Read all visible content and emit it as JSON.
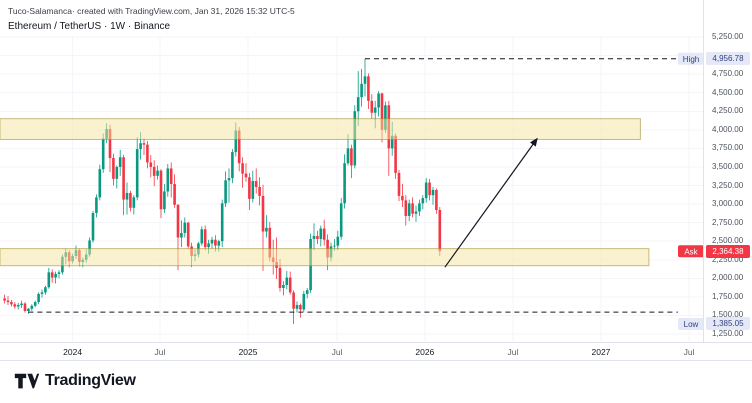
{
  "header": {
    "attribution": "Tuco-Salamanca· created with TradingView.com, Jan 31, 2026 15:32 UTC-5",
    "symbol_line": "Ethereum / TetherUS · 1W · Binance"
  },
  "footer": {
    "logo_text": "TradingView"
  },
  "colors": {
    "up": "#089981",
    "down": "#F23645",
    "zone_fill": "#F5E6A0",
    "zone_border": "#9a8526",
    "drawing": "#131722",
    "tag_bg": "#e4e8f7",
    "tag_text": "#343f7d",
    "ask": "#F23645",
    "grid": "#f4f5f8",
    "axis_text": "#4c525e"
  },
  "chart_data": {
    "type": "candlestick",
    "symbol": "Ethereum / TetherUS",
    "interval": "1W",
    "exchange": "Binance",
    "y_axis": {
      "min": 1250,
      "max": 5250,
      "tick_step": 250
    },
    "x_axis": {
      "labels": [
        {
          "text": "2024",
          "week": 20,
          "type": "year"
        },
        {
          "text": "Jul",
          "week": 45.7,
          "type": "month"
        },
        {
          "text": "2025",
          "week": 71.6,
          "type": "year"
        },
        {
          "text": "Jul",
          "week": 97.8,
          "type": "month"
        },
        {
          "text": "2026",
          "week": 123.6,
          "type": "year"
        },
        {
          "text": "Jul",
          "week": 149.5,
          "type": "month"
        },
        {
          "text": "2027",
          "week": 175.4,
          "type": "year"
        },
        {
          "text": "Jul",
          "week": 201.3,
          "type": "month"
        }
      ]
    },
    "candles": [
      [
        1730,
        1780,
        1660,
        1700
      ],
      [
        1700,
        1760,
        1640,
        1680
      ],
      [
        1680,
        1710,
        1620,
        1650
      ],
      [
        1650,
        1680,
        1590,
        1620
      ],
      [
        1620,
        1670,
        1580,
        1640
      ],
      [
        1640,
        1700,
        1600,
        1660
      ],
      [
        1660,
        1680,
        1540,
        1560
      ],
      [
        1560,
        1600,
        1520,
        1590
      ],
      [
        1590,
        1650,
        1560,
        1630
      ],
      [
        1630,
        1700,
        1610,
        1680
      ],
      [
        1680,
        1810,
        1650,
        1790
      ],
      [
        1790,
        1850,
        1740,
        1810
      ],
      [
        1810,
        1900,
        1780,
        1880
      ],
      [
        1880,
        2140,
        1860,
        2080
      ],
      [
        2080,
        2120,
        1940,
        2010
      ],
      [
        2010,
        2090,
        1930,
        2060
      ],
      [
        2060,
        2110,
        2000,
        2080
      ],
      [
        2080,
        2320,
        2050,
        2290
      ],
      [
        2290,
        2400,
        2190,
        2350
      ],
      [
        2350,
        2380,
        2150,
        2230
      ],
      [
        2230,
        2330,
        2200,
        2300
      ],
      [
        2300,
        2440,
        2260,
        2380
      ],
      [
        2380,
        2400,
        2160,
        2220
      ],
      [
        2220,
        2280,
        2150,
        2250
      ],
      [
        2250,
        2390,
        2210,
        2320
      ],
      [
        2320,
        2550,
        2290,
        2510
      ],
      [
        2510,
        2910,
        2480,
        2880
      ],
      [
        2880,
        3130,
        2820,
        3090
      ],
      [
        3090,
        3530,
        3050,
        3470
      ],
      [
        3470,
        3950,
        3420,
        3880
      ],
      [
        3880,
        4090,
        3820,
        4010
      ],
      [
        4010,
        4070,
        3430,
        3620
      ],
      [
        3620,
        3680,
        3250,
        3340
      ],
      [
        3340,
        3520,
        3210,
        3500
      ],
      [
        3500,
        3730,
        3380,
        3630
      ],
      [
        3630,
        3660,
        2850,
        3060
      ],
      [
        3060,
        3290,
        2860,
        3150
      ],
      [
        3150,
        3180,
        2900,
        2950
      ],
      [
        2950,
        3120,
        2860,
        3090
      ],
      [
        3090,
        3900,
        3050,
        3740
      ],
      [
        3740,
        3970,
        3600,
        3820
      ],
      [
        3820,
        3880,
        3660,
        3800
      ],
      [
        3800,
        3850,
        3480,
        3560
      ],
      [
        3560,
        3660,
        3360,
        3500
      ],
      [
        3500,
        3590,
        3240,
        3380
      ],
      [
        3380,
        3520,
        3330,
        3450
      ],
      [
        3450,
        3470,
        2810,
        2930
      ],
      [
        2930,
        3270,
        2880,
        3170
      ],
      [
        3170,
        3540,
        3100,
        3480
      ],
      [
        3480,
        3560,
        3090,
        3270
      ],
      [
        3270,
        3400,
        2950,
        2990
      ],
      [
        2990,
        3000,
        2110,
        2550
      ],
      [
        2550,
        2780,
        2420,
        2610
      ],
      [
        2610,
        2820,
        2550,
        2750
      ],
      [
        2750,
        2760,
        2400,
        2430
      ],
      [
        2430,
        2480,
        2150,
        2300
      ],
      [
        2300,
        2390,
        2230,
        2320
      ],
      [
        2320,
        2490,
        2280,
        2470
      ],
      [
        2470,
        2700,
        2440,
        2660
      ],
      [
        2660,
        2710,
        2380,
        2420
      ],
      [
        2420,
        2520,
        2330,
        2470
      ],
      [
        2470,
        2560,
        2400,
        2520
      ],
      [
        2520,
        2580,
        2360,
        2440
      ],
      [
        2440,
        2520,
        2360,
        2500
      ],
      [
        2500,
        3060,
        2420,
        3010
      ],
      [
        3010,
        3440,
        2960,
        3320
      ],
      [
        3320,
        3480,
        3020,
        3350
      ],
      [
        3350,
        3740,
        3280,
        3700
      ],
      [
        3700,
        4100,
        3640,
        3990
      ],
      [
        3990,
        4040,
        3440,
        3550
      ],
      [
        3550,
        3630,
        3220,
        3410
      ],
      [
        3410,
        3550,
        3300,
        3360
      ],
      [
        3360,
        3420,
        2920,
        3070
      ],
      [
        3070,
        3450,
        3020,
        3310
      ],
      [
        3310,
        3480,
        3140,
        3230
      ],
      [
        3230,
        3360,
        2980,
        3110
      ],
      [
        3110,
        3260,
        2100,
        2630
      ],
      [
        2630,
        2850,
        2550,
        2680
      ],
      [
        2680,
        2760,
        2230,
        2280
      ],
      [
        2280,
        2520,
        2050,
        2220
      ],
      [
        2220,
        2550,
        1990,
        2140
      ],
      [
        2140,
        2260,
        1820,
        1870
      ],
      [
        1870,
        1960,
        1770,
        1910
      ],
      [
        1910,
        2100,
        1850,
        2010
      ],
      [
        2010,
        2090,
        1780,
        1810
      ],
      [
        1810,
        1840,
        1385.05,
        1590
      ],
      [
        1590,
        1690,
        1540,
        1640
      ],
      [
        1640,
        1660,
        1470,
        1580
      ],
      [
        1580,
        1830,
        1550,
        1790
      ],
      [
        1790,
        1870,
        1730,
        1840
      ],
      [
        1840,
        2600,
        1800,
        2530
      ],
      [
        2530,
        2740,
        2380,
        2570
      ],
      [
        2570,
        2640,
        2460,
        2530
      ],
      [
        2530,
        2710,
        2430,
        2670
      ],
      [
        2670,
        2790,
        2440,
        2520
      ],
      [
        2520,
        2590,
        2110,
        2280
      ],
      [
        2280,
        2480,
        2230,
        2430
      ],
      [
        2430,
        2530,
        2370,
        2440
      ],
      [
        2440,
        2640,
        2380,
        2560
      ],
      [
        2560,
        3080,
        2520,
        3010
      ],
      [
        3010,
        3670,
        2940,
        3550
      ],
      [
        3550,
        3940,
        3520,
        3750
      ],
      [
        3750,
        3800,
        3350,
        3520
      ],
      [
        3520,
        4330,
        3480,
        4250
      ],
      [
        4250,
        4790,
        4050,
        4440
      ],
      [
        4440,
        4820,
        4310,
        4620
      ],
      [
        4620,
        4956.78,
        4450,
        4720
      ],
      [
        4720,
        4760,
        4280,
        4390
      ],
      [
        4390,
        4480,
        4150,
        4230
      ],
      [
        4230,
        4390,
        4020,
        4300
      ],
      [
        4300,
        4520,
        4180,
        4490
      ],
      [
        4490,
        4500,
        3830,
        4000
      ],
      [
        4000,
        4380,
        3960,
        4330
      ],
      [
        4330,
        4390,
        3380,
        3750
      ],
      [
        3750,
        4110,
        3650,
        3920
      ],
      [
        3920,
        3950,
        3340,
        3420
      ],
      [
        3420,
        3460,
        3040,
        3110
      ],
      [
        3110,
        3270,
        2960,
        3050
      ],
      [
        3050,
        3120,
        2710,
        2840
      ],
      [
        2840,
        3060,
        2770,
        3010
      ],
      [
        3010,
        3090,
        2820,
        2870
      ],
      [
        2870,
        2980,
        2760,
        2900
      ],
      [
        2900,
        3060,
        2840,
        3010
      ],
      [
        3010,
        3120,
        2930,
        3080
      ],
      [
        3080,
        3350,
        3020,
        3290
      ],
      [
        3290,
        3340,
        3050,
        3120
      ],
      [
        3120,
        3230,
        2990,
        3190
      ],
      [
        3190,
        3210,
        2870,
        2920
      ],
      [
        2920,
        2960,
        2300,
        2364.38
      ]
    ],
    "zones": [
      {
        "name": "supply-zone",
        "price_top": 4150,
        "price_bottom": 3870,
        "week_start": -1.4,
        "week_end": 187
      },
      {
        "name": "demand-zone",
        "price_top": 2400,
        "price_bottom": 2170,
        "week_start": -1.4,
        "week_end": 189.5
      }
    ],
    "lines": [
      {
        "name": "high-level",
        "price": 4956.78,
        "week_start": 106,
        "week_end": 198,
        "style": "dashed"
      },
      {
        "name": "low-level",
        "price": 1545,
        "week_start": 7,
        "week_end": 198,
        "style": "dashed"
      }
    ],
    "arrow": {
      "week_start": 129.5,
      "price_start": 2150,
      "week_end": 156.6,
      "price_end": 3880
    },
    "tags": [
      {
        "label": "High",
        "price": 4956.78,
        "kind": "info"
      },
      {
        "label": "Ask",
        "price": 2364.38,
        "kind": "ask"
      },
      {
        "label": "Low",
        "price": 1385.05,
        "kind": "info"
      }
    ],
    "axis_badges": [
      {
        "value": "4,956.78",
        "price": 4956.78,
        "kind": "info"
      },
      {
        "value": "2,364.38",
        "price": 2364.38,
        "kind": "ask"
      },
      {
        "value": "1,385.05",
        "price": 1385.05,
        "kind": "info"
      }
    ]
  }
}
